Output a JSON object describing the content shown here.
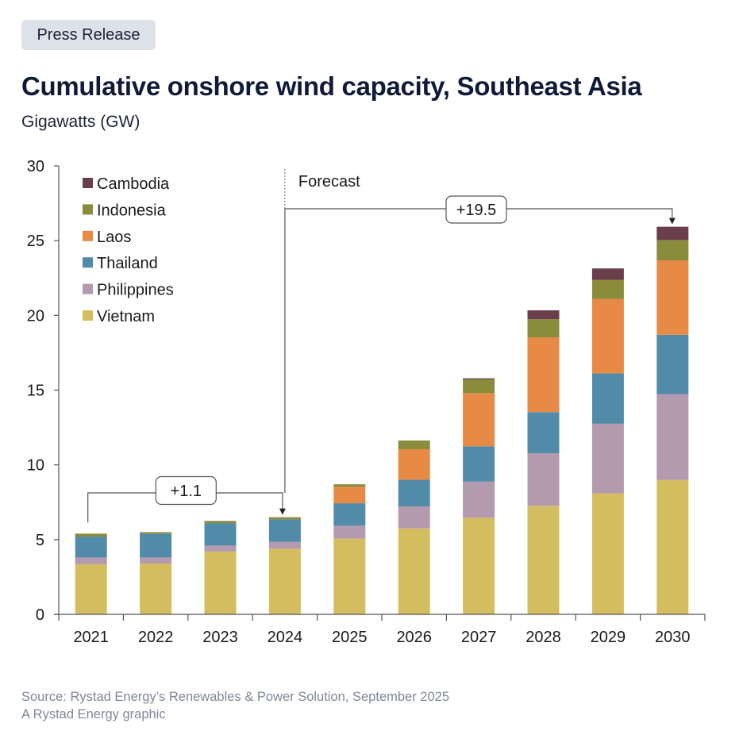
{
  "badge": "Press Release",
  "title": "Cumulative onshore wind capacity, Southeast Asia",
  "subtitle": "Gigawatts (GW)",
  "footer": {
    "source": "Source: Rystad Energy’s Renewables & Power Solution, September 2025",
    "credit": "A Rystad Energy graphic"
  },
  "chart_data": {
    "type": "bar",
    "stacked": true,
    "title": "Cumulative onshore wind capacity, Southeast Asia",
    "xlabel": "",
    "ylabel": "Gigawatts (GW)",
    "ylim": [
      0,
      30
    ],
    "yticks": [
      0,
      5,
      10,
      15,
      20,
      25,
      30
    ],
    "grid": false,
    "legend_position": "top-left",
    "categories": [
      "2021",
      "2022",
      "2023",
      "2024",
      "2025",
      "2026",
      "2027",
      "2028",
      "2029",
      "2030"
    ],
    "series": [
      {
        "name": "Vietnam",
        "color": "#d4bd5f",
        "values": [
          3.35,
          3.4,
          4.2,
          4.4,
          5.06,
          5.75,
          6.46,
          7.26,
          8.09,
          8.99
        ]
      },
      {
        "name": "Philippines",
        "color": "#b39aae",
        "values": [
          0.45,
          0.4,
          0.4,
          0.45,
          0.87,
          1.47,
          2.42,
          3.52,
          4.66,
          5.74
        ]
      },
      {
        "name": "Thailand",
        "color": "#528ba8",
        "values": [
          1.4,
          1.6,
          1.5,
          1.5,
          1.5,
          1.78,
          2.36,
          2.75,
          3.37,
          3.97
        ]
      },
      {
        "name": "Laos",
        "color": "#e68a45",
        "values": [
          0,
          0,
          0,
          0,
          1.1,
          2.05,
          3.56,
          5.0,
          4.98,
          4.98
        ]
      },
      {
        "name": "Indonesia",
        "color": "#8b8b3c",
        "values": [
          0.2,
          0.1,
          0.15,
          0.15,
          0.17,
          0.58,
          0.92,
          1.21,
          1.28,
          1.36
        ]
      },
      {
        "name": "Cambodia",
        "color": "#6a3f4b",
        "values": [
          0,
          0,
          0,
          0,
          0,
          0,
          0.07,
          0.6,
          0.76,
          0.89
        ]
      }
    ],
    "legend_order": [
      "Cambodia",
      "Indonesia",
      "Laos",
      "Thailand",
      "Philippines",
      "Vietnam"
    ],
    "forecast": {
      "label": "Forecast",
      "starts_after": "2024"
    },
    "annotations": [
      {
        "label": "+1.1",
        "from": "2021",
        "to": "2024"
      },
      {
        "label": "+19.5",
        "from": "2024",
        "to": "2030"
      }
    ]
  }
}
